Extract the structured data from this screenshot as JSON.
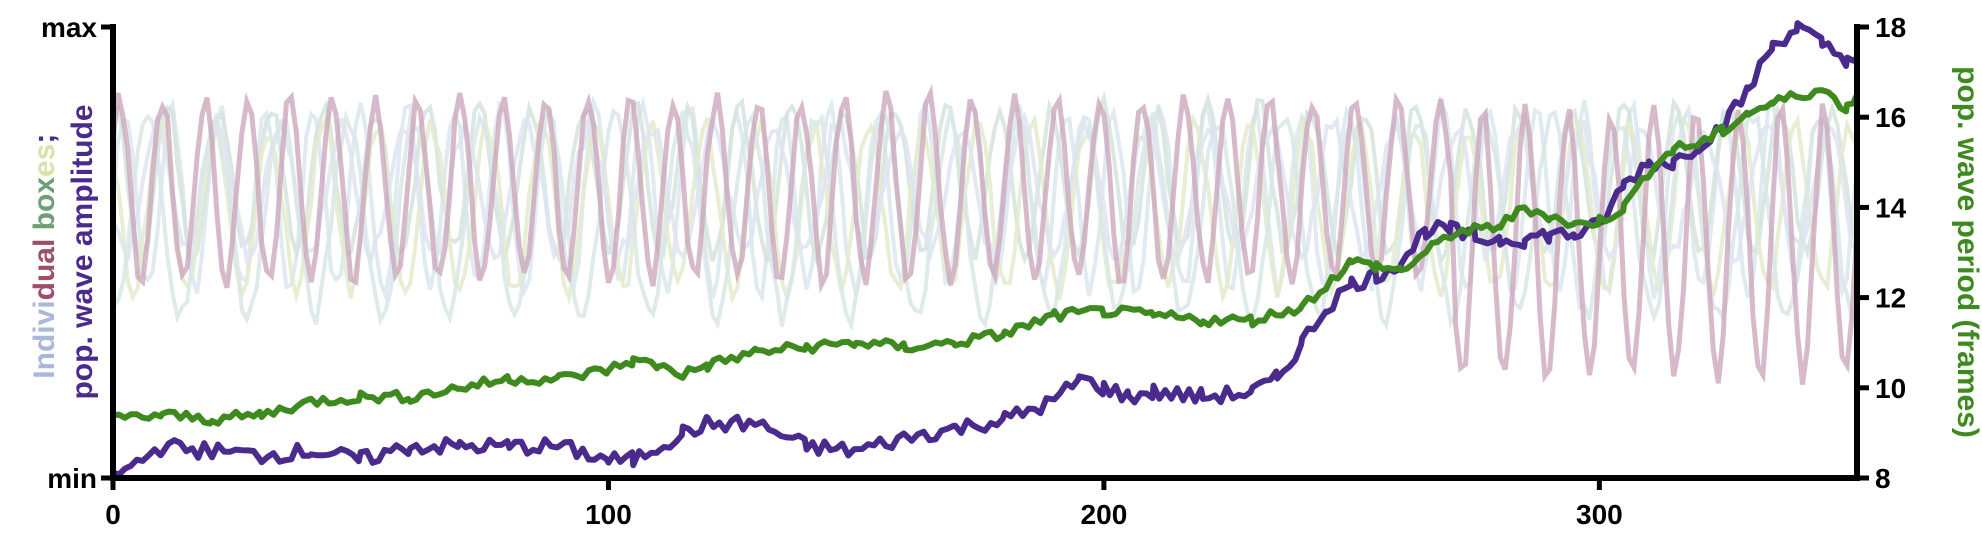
{
  "chart_data": {
    "type": "line",
    "xlim": [
      0,
      352
    ],
    "x_ticks": [
      "0",
      "100",
      "200",
      "300"
    ],
    "y_left_ticks": [
      "max",
      "min"
    ],
    "y_left_label": {
      "line1_parts": [
        {
          "text": "Indivi",
          "color": "#a9b7d9"
        },
        {
          "text": "dual ",
          "color": "#9b4f6a"
        },
        {
          "text": "box",
          "color": "#6f9e76"
        },
        {
          "text": "es",
          "color": "#d9e2a8"
        },
        {
          "text": ";",
          "color": "#4a2a8c"
        }
      ],
      "line2": "pop. wave amplitude",
      "line2_color": "#4a2a8c"
    },
    "y_right_label": "pop. wave period (frames)",
    "y_right_color": "#3f8a1f",
    "y_right_ticks": [
      "8",
      "10",
      "12",
      "14",
      "16",
      "18"
    ],
    "y_right_lim": [
      8,
      18
    ],
    "colors": {
      "amplitude": "#4a2a8c",
      "period": "#3f8a1f",
      "box_main": "#c9a3b8",
      "box_faint": [
        "#dbe6ee",
        "#d5e3dc",
        "#e4ebcd",
        "#dfe4f2",
        "#d9e6e8"
      ]
    },
    "series": [
      {
        "name": "pop. wave amplitude",
        "axis": "left",
        "x": [
          0,
          10,
          20,
          30,
          40,
          50,
          60,
          70,
          80,
          90,
          100,
          105,
          110,
          115,
          120,
          130,
          140,
          150,
          160,
          170,
          180,
          190,
          195,
          200,
          205,
          210,
          220,
          230,
          235,
          240,
          245,
          250,
          255,
          260,
          265,
          270,
          275,
          280,
          285,
          290,
          295,
          300,
          305,
          310,
          315,
          320,
          325,
          330,
          335,
          340,
          345,
          350,
          352
        ],
        "values": [
          0.0,
          0.07,
          0.06,
          0.05,
          0.06,
          0.04,
          0.07,
          0.07,
          0.07,
          0.07,
          0.04,
          0.04,
          0.07,
          0.1,
          0.12,
          0.12,
          0.07,
          0.06,
          0.09,
          0.11,
          0.13,
          0.17,
          0.22,
          0.2,
          0.18,
          0.19,
          0.18,
          0.19,
          0.22,
          0.3,
          0.38,
          0.43,
          0.45,
          0.48,
          0.55,
          0.55,
          0.53,
          0.53,
          0.53,
          0.54,
          0.54,
          0.56,
          0.65,
          0.7,
          0.7,
          0.74,
          0.78,
          0.86,
          0.96,
          1.0,
          0.96,
          0.93,
          0.93
        ]
      },
      {
        "name": "pop. wave period (frames)",
        "axis": "right",
        "x": [
          0,
          10,
          20,
          30,
          40,
          50,
          60,
          70,
          80,
          90,
          100,
          105,
          110,
          115,
          120,
          130,
          140,
          150,
          160,
          170,
          180,
          190,
          200,
          210,
          220,
          230,
          240,
          250,
          255,
          260,
          265,
          270,
          275,
          280,
          285,
          290,
          295,
          300,
          305,
          310,
          315,
          320,
          325,
          330,
          335,
          340,
          345,
          350,
          352
        ],
        "values": [
          9.3,
          9.4,
          9.3,
          9.4,
          9.7,
          9.8,
          9.8,
          10.0,
          10.2,
          10.2,
          10.4,
          10.6,
          10.5,
          10.3,
          10.5,
          10.8,
          10.9,
          11.0,
          10.9,
          11.0,
          11.2,
          11.6,
          11.7,
          11.6,
          11.5,
          11.5,
          11.8,
          12.8,
          12.7,
          12.6,
          13.0,
          13.4,
          13.5,
          13.6,
          14.0,
          13.8,
          13.6,
          13.7,
          14.0,
          14.8,
          15.3,
          15.4,
          15.7,
          16.1,
          16.3,
          16.5,
          16.6,
          16.2,
          16.5
        ]
      }
    ],
    "individual_boxes": [
      {
        "color_index": 0,
        "center": 0.62,
        "amp": 0.2,
        "period": 9.5,
        "phase": 0.0
      },
      {
        "color_index": 1,
        "center": 0.66,
        "amp": 0.16,
        "period": 10.5,
        "phase": 1.3
      },
      {
        "color_index": 2,
        "center": 0.6,
        "amp": 0.18,
        "period": 11.0,
        "phase": 2.4
      },
      {
        "color_index": 3,
        "center": 0.64,
        "amp": 0.14,
        "period": 12.5,
        "phase": 3.5
      },
      {
        "color_index": 4,
        "center": 0.58,
        "amp": 0.22,
        "period": 13.5,
        "phase": 4.6
      }
    ]
  }
}
